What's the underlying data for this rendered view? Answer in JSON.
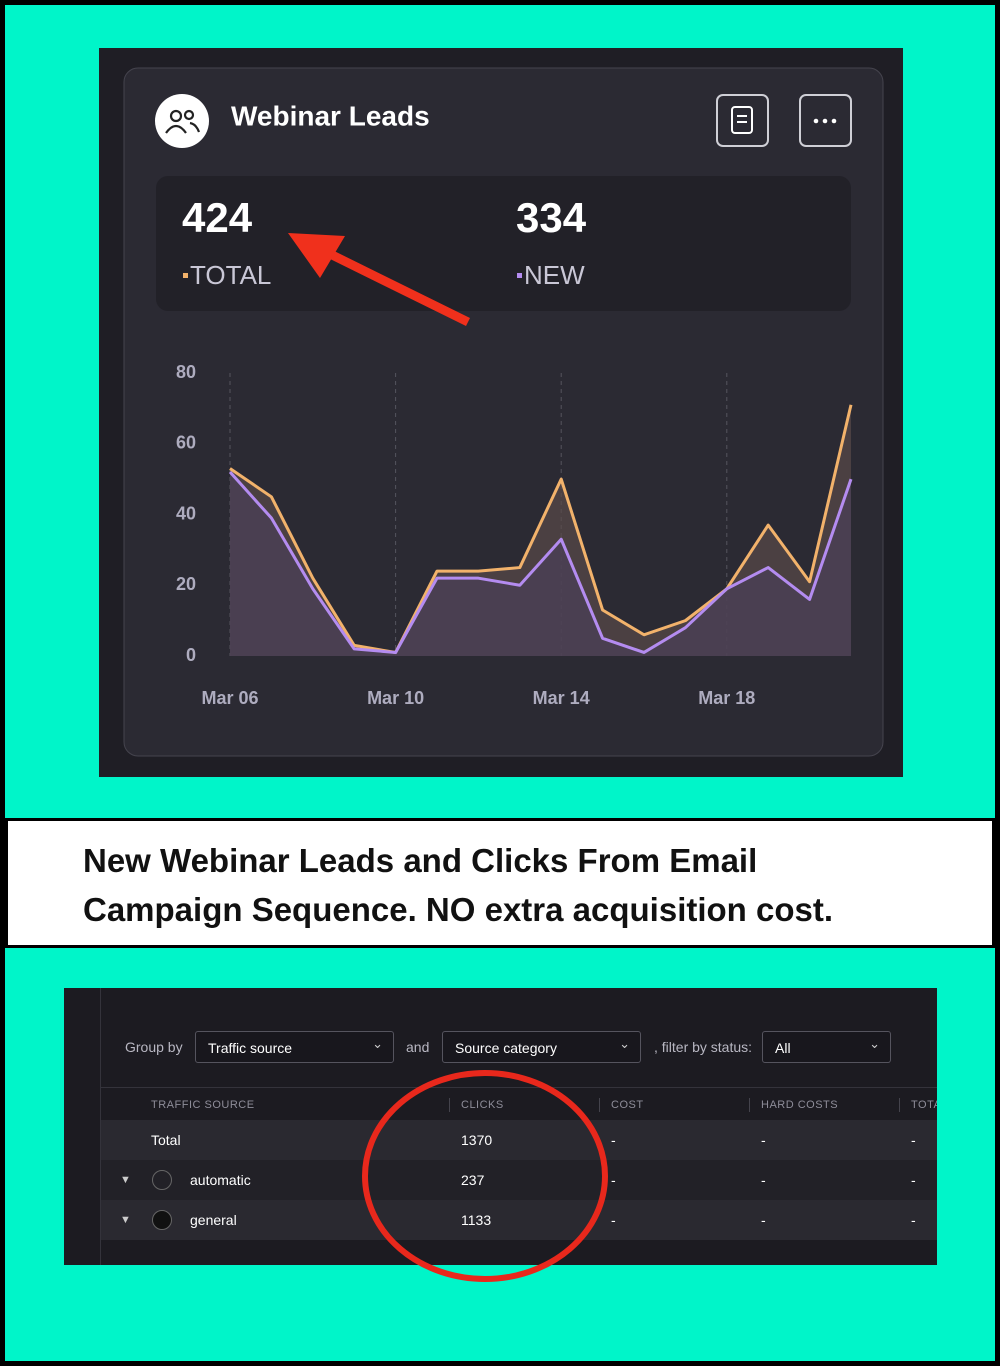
{
  "chart_data": {
    "type": "line",
    "title": "Webinar Leads",
    "categories": [
      "Mar 06",
      null,
      null,
      null,
      "Mar 10",
      null,
      null,
      null,
      "Mar 14",
      null,
      null,
      null,
      "Mar 18",
      null,
      null,
      null
    ],
    "series": [
      {
        "name": "TOTAL",
        "total": 424,
        "color": "#f2b26b",
        "values": [
          53,
          45,
          22,
          3,
          1,
          24,
          24,
          25,
          50,
          13,
          6,
          10,
          19,
          37,
          21,
          71
        ]
      },
      {
        "name": "NEW",
        "total": 334,
        "color": "#b48cf0",
        "values": [
          52,
          39,
          19,
          2,
          1,
          22,
          22,
          20,
          33,
          5,
          1,
          8,
          19,
          25,
          16,
          50
        ]
      }
    ],
    "ylim": [
      0,
      80
    ],
    "yticks": [
      0,
      20,
      40,
      60,
      80
    ]
  },
  "caption": "New Webinar Leads and Clicks From Email Campaign Sequence. NO extra acquisition cost.",
  "table": {
    "filters": {
      "group_by_label": "Group by",
      "group_by": "Traffic source",
      "and_label": "and",
      "then_by": "Source category",
      "status_label": ", filter by status:",
      "status": "All"
    },
    "columns": [
      "TRAFFIC SOURCE",
      "CLICKS",
      "COST",
      "HARD COSTS",
      "TOTA"
    ],
    "rows": [
      [
        "Total",
        1370,
        "-",
        "-",
        "-"
      ],
      [
        "automatic",
        237,
        "-",
        "-",
        "-"
      ],
      [
        "general",
        1133,
        "-",
        "-",
        "-"
      ]
    ]
  }
}
